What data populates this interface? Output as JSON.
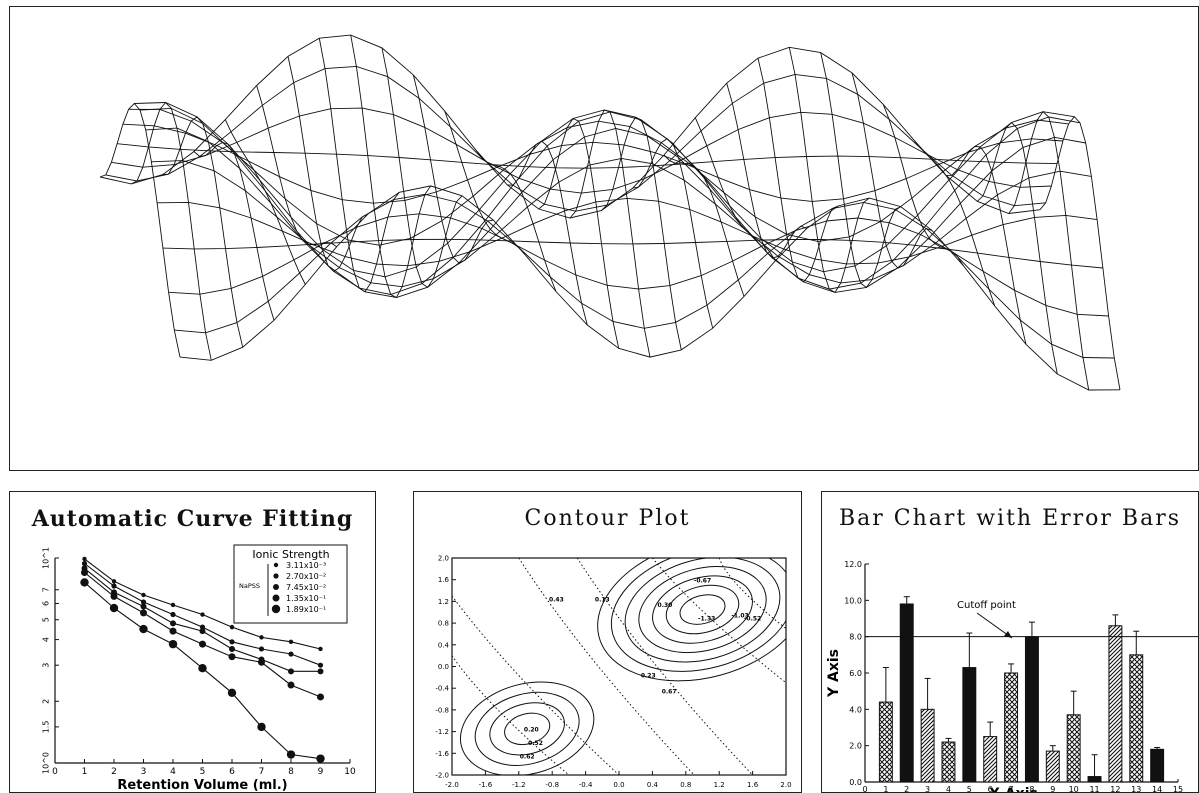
{
  "chart_data": [
    {
      "type": "surface",
      "title": "",
      "xlabel": "",
      "ylabel": "",
      "grid_rows": 14,
      "grid_cols": 30
    },
    {
      "type": "line",
      "title": "Automatic Curve Fitting",
      "xlabel": "Retention Volume (ml.)",
      "ylabel": "",
      "x_ticks": [
        "0",
        "1",
        "2",
        "3",
        "4",
        "5",
        "6",
        "7",
        "8",
        "9",
        "10"
      ],
      "y_ticks": [
        "10^0",
        "1.5",
        "2",
        "3",
        "4",
        "5",
        "6",
        "7",
        "10^1"
      ],
      "xlim": [
        0,
        10
      ],
      "ylim": [
        1,
        10
      ],
      "y_scale": "log",
      "legend": {
        "title": "Ionic Strength",
        "side_label": "NaPSS",
        "placement": "top-right",
        "entries": [
          "3.11x10⁻³",
          "2.70x10⁻²",
          "7.45x10⁻²",
          "1.35x10⁻¹",
          "1.89x10⁻¹"
        ]
      },
      "x": [
        1,
        2,
        3,
        4,
        5,
        6,
        7,
        8,
        9
      ],
      "series": [
        {
          "name": "3.11x10⁻³",
          "values": [
            9.9,
            7.7,
            6.6,
            5.9,
            5.3,
            4.6,
            4.1,
            3.9,
            3.6
          ]
        },
        {
          "name": "2.70x10⁻²",
          "values": [
            9.4,
            7.3,
            6.1,
            5.3,
            4.6,
            3.9,
            3.6,
            3.4,
            3.0
          ]
        },
        {
          "name": "7.45x10⁻²",
          "values": [
            8.9,
            6.8,
            5.8,
            4.8,
            4.4,
            3.6,
            3.2,
            2.8,
            2.8
          ]
        },
        {
          "name": "1.35x10⁻¹",
          "values": [
            8.5,
            6.5,
            5.4,
            4.4,
            3.8,
            3.3,
            3.1,
            2.4,
            2.1
          ]
        },
        {
          "name": "1.89x10⁻¹",
          "values": [
            7.6,
            5.7,
            4.5,
            3.8,
            2.9,
            2.2,
            1.5,
            1.1,
            1.05
          ]
        }
      ]
    },
    {
      "type": "contour",
      "title": "Contour Plot",
      "xlabel": "",
      "ylabel": "",
      "x_ticks": [
        "-2.0",
        "-1.6",
        "-1.2",
        "-0.8",
        "-0.4",
        "0.0",
        "0.4",
        "0.8",
        "1.2",
        "1.6",
        "2.0"
      ],
      "y_ticks": [
        "-2.0",
        "-1.6",
        "-1.2",
        "-0.8",
        "-0.4",
        "0.0",
        "0.4",
        "0.8",
        "1.2",
        "1.6",
        "2.0"
      ],
      "xlim": [
        -2,
        2
      ],
      "ylim": [
        -2,
        2
      ],
      "contour_labels": [
        "-0.67",
        "-0.52",
        "-1.33",
        "-1.03",
        "0.13",
        "0.30",
        "0.62",
        "0.67",
        "0.52",
        "0.43",
        "0.20",
        "0.23"
      ]
    },
    {
      "type": "bar",
      "title": "Bar Chart with Error Bars",
      "xlabel": "X Axis",
      "ylabel": "Y Axis",
      "ylim": [
        0,
        12
      ],
      "xlim": [
        0,
        15
      ],
      "y_ticks": [
        "0.0",
        "2.0",
        "4.0",
        "6.0",
        "8.0",
        "10.0",
        "12.0"
      ],
      "x_ticks": [
        "0",
        "1",
        "2",
        "3",
        "4",
        "5",
        "6",
        "7",
        "8",
        "9",
        "10",
        "11",
        "12",
        "13",
        "14",
        "15"
      ],
      "reference_line": {
        "y": 8.0,
        "label": "Cutoff point"
      },
      "categories": [
        1,
        2,
        3,
        4,
        5,
        6,
        7,
        8,
        9,
        10,
        11,
        12,
        13,
        14
      ],
      "values": [
        4.4,
        9.8,
        4.0,
        2.2,
        6.3,
        2.5,
        6.0,
        8.0,
        1.7,
        3.7,
        0.3,
        8.6,
        7.0,
        1.8
      ],
      "errors": [
        1.9,
        0.4,
        1.7,
        0.2,
        1.9,
        0.8,
        0.5,
        0.8,
        0.3,
        1.3,
        1.2,
        0.6,
        1.3,
        0.1
      ],
      "patterns": [
        "cross",
        "solid",
        "diag",
        "cross",
        "solid",
        "diag",
        "cross",
        "solid",
        "diag",
        "cross",
        "solid",
        "diag",
        "cross",
        "solid"
      ]
    }
  ]
}
